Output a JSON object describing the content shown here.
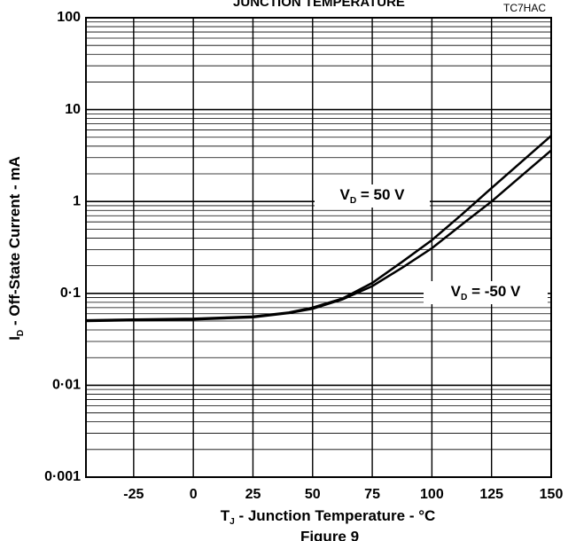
{
  "chart_data": {
    "type": "line",
    "title": "JUNCTION TEMPERATURE",
    "code": "TC7HAC",
    "figure": "Figure 9",
    "x_label": {
      "main": "T",
      "sub": "J",
      "rest": " - Junction Temperature - °C"
    },
    "y_label": {
      "main": "I",
      "sub": "D",
      "rest": " - Off-State Current - mA"
    },
    "x": [
      -45,
      -25,
      0,
      25,
      40,
      50,
      62.5,
      75,
      87.5,
      100,
      112.5,
      125,
      137.5,
      150
    ],
    "series": [
      {
        "name": {
          "main": "V",
          "sub": "D",
          "rest": " = 50 V"
        },
        "color": "#000000",
        "values": [
          0.051,
          0.052,
          0.053,
          0.056,
          0.062,
          0.07,
          0.088,
          0.13,
          0.22,
          0.38,
          0.72,
          1.4,
          2.7,
          5.2
        ]
      },
      {
        "name": {
          "main": "V",
          "sub": "D",
          "rest": " = -50 V"
        },
        "color": "#000000",
        "values": [
          0.05,
          0.051,
          0.052,
          0.055,
          0.061,
          0.068,
          0.086,
          0.12,
          0.19,
          0.31,
          0.56,
          1.0,
          1.9,
          3.6
        ]
      }
    ],
    "xlim": [
      -45,
      150
    ],
    "xticks": [
      -25,
      0,
      25,
      50,
      75,
      100,
      125,
      150
    ],
    "ylim": [
      0.001,
      100
    ],
    "yticks": [
      {
        "value": 0.001,
        "label": "0·001"
      },
      {
        "value": 0.01,
        "label": "0·01"
      },
      {
        "value": 0.1,
        "label": "0·1"
      },
      1,
      10,
      100
    ],
    "log_y": true,
    "grid": true,
    "minor_grid": true
  }
}
